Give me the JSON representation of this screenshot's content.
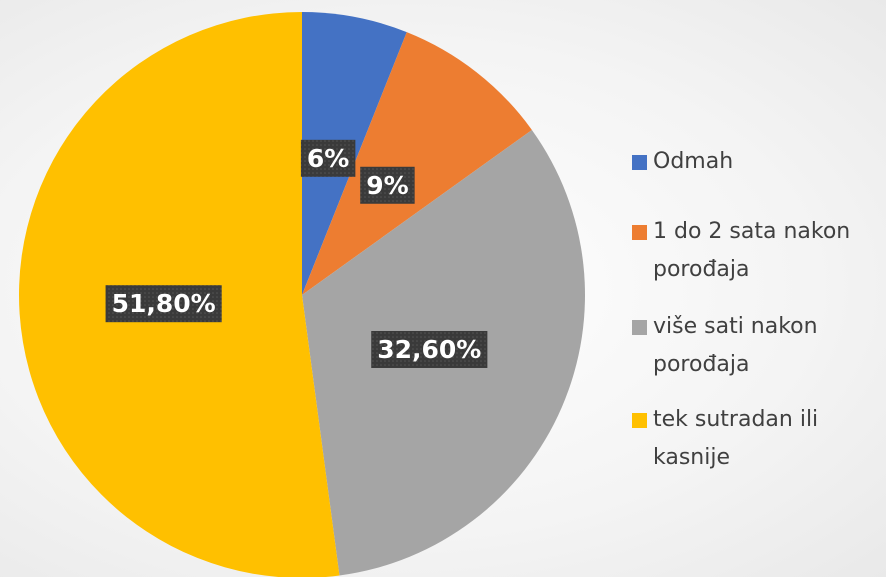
{
  "chart_data": {
    "type": "pie",
    "categories": [
      "Odmah",
      "1 do 2 sata nakon porođaja",
      "više sati nakon porođaja",
      "tek sutradan ili kasnije"
    ],
    "values": [
      6,
      9,
      32.6,
      51.8
    ],
    "value_labels": [
      "6%",
      "9%",
      "32,60%",
      "51,80%"
    ],
    "colors": [
      "#4472c4",
      "#ed7d31",
      "#a5a5a5",
      "#ffc000"
    ],
    "legend": "right"
  }
}
